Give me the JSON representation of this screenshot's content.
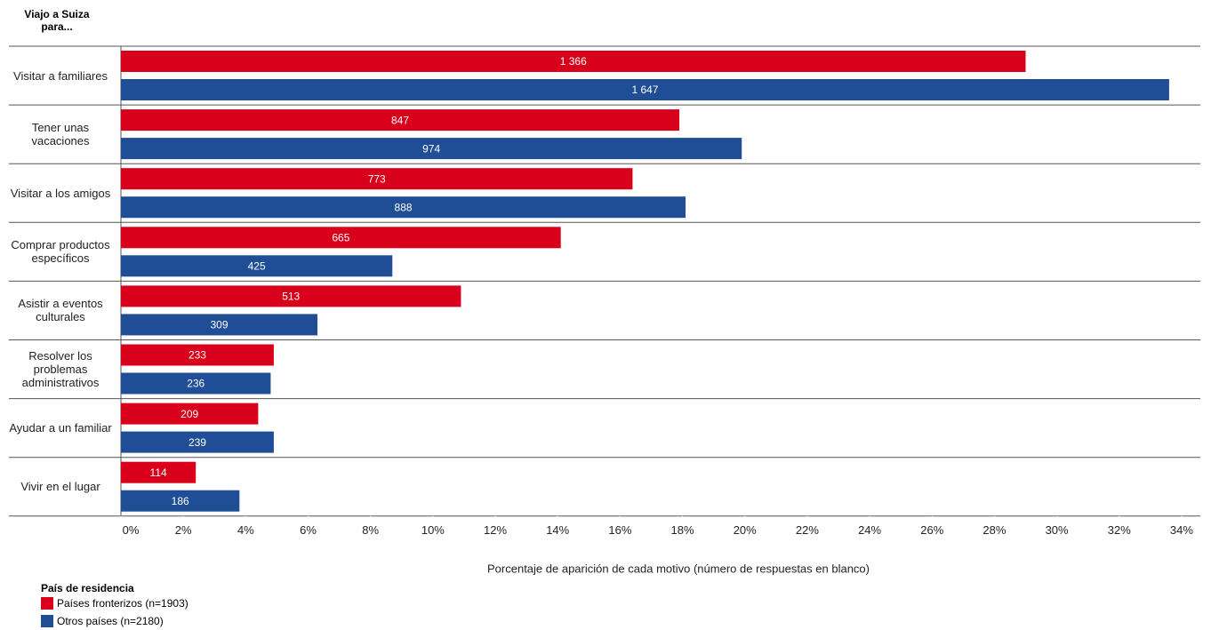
{
  "chart_data": {
    "type": "grouped-hbar",
    "y_label": "Viajo a Suiza para...",
    "x_label": "Porcentaje de aparición de cada motivo (número de respuestas en blanco)",
    "legend_title": "País de residencia",
    "categories": [
      "Visitar  a familiares",
      "Tener unas vacaciones",
      "Visitar a los amigos",
      "Comprar productos específicos",
      "Asistir a eventos culturales",
      "Resolver los problemas administrativos",
      "Ayudar a un familiar",
      "Vivir en el lugar"
    ],
    "series": [
      {
        "name": "Países fronterizos (n=1903)",
        "color": "#d9001b",
        "values": [
          29.0,
          17.9,
          16.4,
          14.1,
          10.9,
          4.9,
          4.4,
          2.4
        ],
        "count_labels": [
          "1 366",
          "847",
          "773",
          "665",
          "513",
          "233",
          "209",
          "114"
        ]
      },
      {
        "name": "Otros países (n=2180)",
        "color": "#1f4e96",
        "values": [
          33.6,
          19.9,
          18.1,
          8.7,
          6.3,
          4.8,
          4.9,
          3.8
        ],
        "count_labels": [
          "1 647",
          "974",
          "888",
          "425",
          "309",
          "236",
          "239",
          "186"
        ]
      }
    ],
    "xlim": [
      0,
      34.6
    ],
    "xticks": [
      {
        "value": 0,
        "label": "0%"
      },
      {
        "value": 2,
        "label": "2%"
      },
      {
        "value": 4,
        "label": "4%"
      },
      {
        "value": 6,
        "label": "6%"
      },
      {
        "value": 8,
        "label": "8%"
      },
      {
        "value": 10,
        "label": "10%"
      },
      {
        "value": 12,
        "label": "12%"
      },
      {
        "value": 14,
        "label": "14%"
      },
      {
        "value": 16,
        "label": "16%"
      },
      {
        "value": 18,
        "label": "18%"
      },
      {
        "value": 20,
        "label": "20%"
      },
      {
        "value": 22,
        "label": "22%"
      },
      {
        "value": 24,
        "label": "24%"
      },
      {
        "value": 26,
        "label": "26%"
      },
      {
        "value": 28,
        "label": "28%"
      },
      {
        "value": 30,
        "label": "30%"
      },
      {
        "value": 32,
        "label": "32%"
      },
      {
        "value": 34,
        "label": "34%"
      }
    ]
  }
}
